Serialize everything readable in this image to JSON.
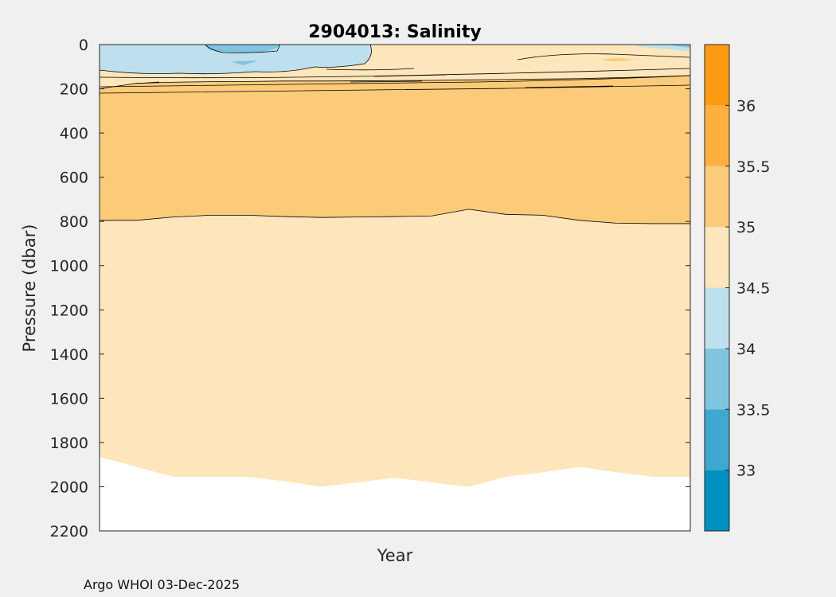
{
  "chart_data": {
    "type": "heatmap",
    "title": "2904013:  Salinity",
    "xlabel": "Year",
    "ylabel": "Pressure (dbar)",
    "ylim": [
      0,
      2200
    ],
    "yticks": [
      0,
      200,
      400,
      600,
      800,
      1000,
      1200,
      1400,
      1600,
      1800,
      2000,
      2200
    ],
    "xticks": [],
    "colorbar": {
      "range": [
        32.5,
        36.5
      ],
      "ticks": [
        33,
        33.5,
        34,
        34.5,
        35,
        35.5,
        36
      ],
      "levels": [
        {
          "from": 32.5,
          "to": 33.0,
          "color": "#0090c0"
        },
        {
          "from": 33.0,
          "to": 33.5,
          "color": "#3ea8d0"
        },
        {
          "from": 33.5,
          "to": 34.0,
          "color": "#80c5e0"
        },
        {
          "from": 34.0,
          "to": 34.5,
          "color": "#bee0ee"
        },
        {
          "from": 34.5,
          "to": 35.0,
          "color": "#fde6bb"
        },
        {
          "from": 35.0,
          "to": 35.5,
          "color": "#fccb79"
        },
        {
          "from": 35.5,
          "to": 36.0,
          "color": "#fdaf3f"
        },
        {
          "from": 36.0,
          "to": 36.5,
          "color": "#fd9a12"
        }
      ]
    },
    "profile_count": 17,
    "contour_35_depth": [
      795,
      795,
      780,
      772,
      772,
      778,
      782,
      780,
      778,
      775,
      745,
      768,
      772,
      795,
      808,
      810,
      810
    ],
    "max_depth": [
      1865,
      1910,
      1955,
      1955,
      1955,
      1975,
      2000,
      1980,
      1960,
      1980,
      2000,
      1955,
      1935,
      1910,
      1935,
      1955,
      1955
    ],
    "surface_35_depth": [
      200,
      175,
      170,
      168,
      167,
      165,
      165,
      164,
      163,
      162,
      160,
      158,
      156,
      154,
      150,
      146,
      140
    ]
  },
  "footer": "Argo WHOI 03-Dec-2025"
}
